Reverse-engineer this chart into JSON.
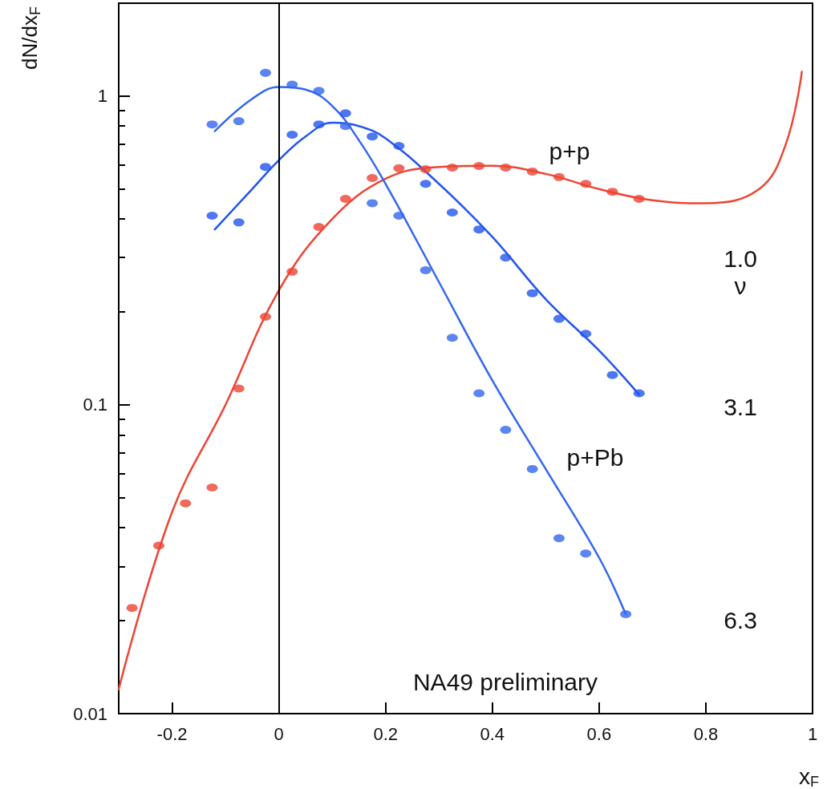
{
  "chart_data": {
    "type": "scatter",
    "xlabel": "x$_{F}$",
    "ylabel": "dN/dx$_{F}$",
    "log": "y",
    "xlim": [
      -0.3,
      1.0
    ],
    "xticks": [
      -0.2,
      0,
      0.2,
      0.4,
      0.6,
      0.8,
      1
    ],
    "ylim": [
      0.01,
      2
    ],
    "yticks": [
      0.01,
      0.1,
      1
    ],
    "grid": false,
    "ref_lines": [
      {
        "axis": "x",
        "value": 0,
        "color": "#000000",
        "line_style": "solid"
      }
    ],
    "annotations": [
      "p+p",
      "p+Pb",
      "1.0",
      "ν",
      "3.1",
      "6.3",
      "NA49 preliminary"
    ],
    "series": [
      {
        "marker": "circle",
        "color": "#ee4433",
        "x": [
          -0.275,
          -0.225,
          -0.175,
          -0.125,
          -0.075,
          -0.025,
          0.025,
          0.075,
          0.125,
          0.175,
          0.225,
          0.275,
          0.325,
          0.375,
          0.425,
          0.475,
          0.525,
          0.575,
          0.625,
          0.675
        ],
        "values": [
          0.022,
          0.035,
          0.048,
          0.054,
          0.113,
          0.193,
          0.27,
          0.377,
          0.465,
          0.543,
          0.584,
          0.58,
          0.587,
          0.594,
          0.587,
          0.57,
          0.547,
          0.52,
          0.49,
          0.465
        ]
      },
      {
        "marker": "circle",
        "color": "#2255ee",
        "x": [
          -0.125,
          -0.075,
          -0.025,
          0.025,
          0.075,
          0.125,
          0.175,
          0.225,
          0.275,
          0.325,
          0.375,
          0.425,
          0.475,
          0.525,
          0.575,
          0.625,
          0.675
        ],
        "values": [
          0.41,
          0.39,
          0.59,
          0.75,
          0.81,
          0.88,
          0.74,
          0.69,
          0.52,
          0.42,
          0.37,
          0.3,
          0.23,
          0.19,
          0.17,
          0.125,
          0.109
        ]
      },
      {
        "marker": "circle",
        "color": "#3366ee",
        "x": [
          -0.125,
          -0.075,
          -0.025,
          0.025,
          0.075,
          0.125,
          0.175,
          0.225,
          0.275,
          0.325,
          0.375,
          0.425,
          0.475,
          0.525,
          0.575,
          0.65
        ],
        "values": [
          0.81,
          0.83,
          1.19,
          1.09,
          1.04,
          0.8,
          0.45,
          0.41,
          0.273,
          0.165,
          0.109,
          0.083,
          0.062,
          0.037,
          0.033,
          0.021
        ]
      },
      {
        "type": "line",
        "marker": "none",
        "color": "#ee4433",
        "x": [
          -0.3,
          -0.2,
          -0.1,
          0,
          0.1,
          0.2,
          0.3,
          0.4,
          0.5,
          0.6,
          0.7,
          0.8,
          0.9,
          0.95,
          0.98
        ],
        "values": [
          0.012,
          0.045,
          0.1,
          0.235,
          0.4,
          0.54,
          0.59,
          0.595,
          0.56,
          0.5,
          0.46,
          0.45,
          0.5,
          0.7,
          1.2
        ]
      },
      {
        "type": "line",
        "marker": "none",
        "color": "#2255ee",
        "x": [
          -0.12,
          -0.05,
          0,
          0.05,
          0.1,
          0.15,
          0.2,
          0.3,
          0.4,
          0.5,
          0.6,
          0.675
        ],
        "values": [
          0.37,
          0.5,
          0.62,
          0.74,
          0.82,
          0.8,
          0.73,
          0.52,
          0.35,
          0.22,
          0.15,
          0.108
        ]
      },
      {
        "type": "line",
        "marker": "none",
        "color": "#3366ee",
        "x": [
          -0.12,
          -0.05,
          0,
          0.05,
          0.1,
          0.15,
          0.2,
          0.3,
          0.4,
          0.5,
          0.6,
          0.65
        ],
        "values": [
          0.77,
          0.98,
          1.07,
          1.05,
          0.93,
          0.72,
          0.52,
          0.25,
          0.12,
          0.062,
          0.032,
          0.021
        ]
      }
    ]
  }
}
